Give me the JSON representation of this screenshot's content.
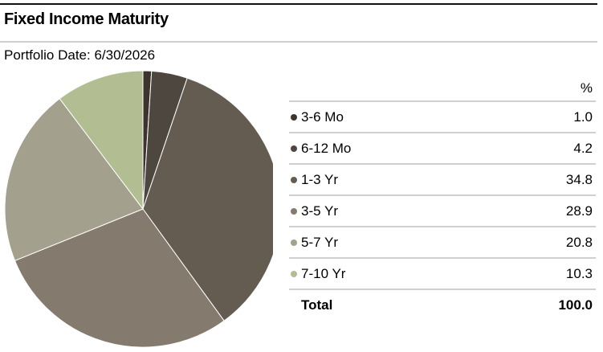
{
  "header": {
    "title": "Fixed Income Maturity",
    "portfolio_date": "Portfolio Date: 6/30/2026"
  },
  "table": {
    "column_header": "%",
    "total_label": "Total",
    "total_value": "100.0"
  },
  "chart_data": {
    "type": "pie",
    "title": "Fixed Income Maturity",
    "subtitle": "Portfolio Date: 6/30/2026",
    "legend_placement": "right",
    "slices": [
      {
        "label": "3-6 Mo",
        "value": 1.0,
        "display": "1.0",
        "color": "#3d342d"
      },
      {
        "label": "6-12 Mo",
        "value": 4.2,
        "display": "4.2",
        "color": "#4e4740"
      },
      {
        "label": "1-3 Yr",
        "value": 34.8,
        "display": "34.8",
        "color": "#655c51"
      },
      {
        "label": "3-5 Yr",
        "value": 28.9,
        "display": "28.9",
        "color": "#847a6e"
      },
      {
        "label": "5-7 Yr",
        "value": 20.8,
        "display": "20.8",
        "color": "#a3a18d"
      },
      {
        "label": "7-10 Yr",
        "value": 10.3,
        "display": "10.3",
        "color": "#b2be92"
      }
    ]
  }
}
